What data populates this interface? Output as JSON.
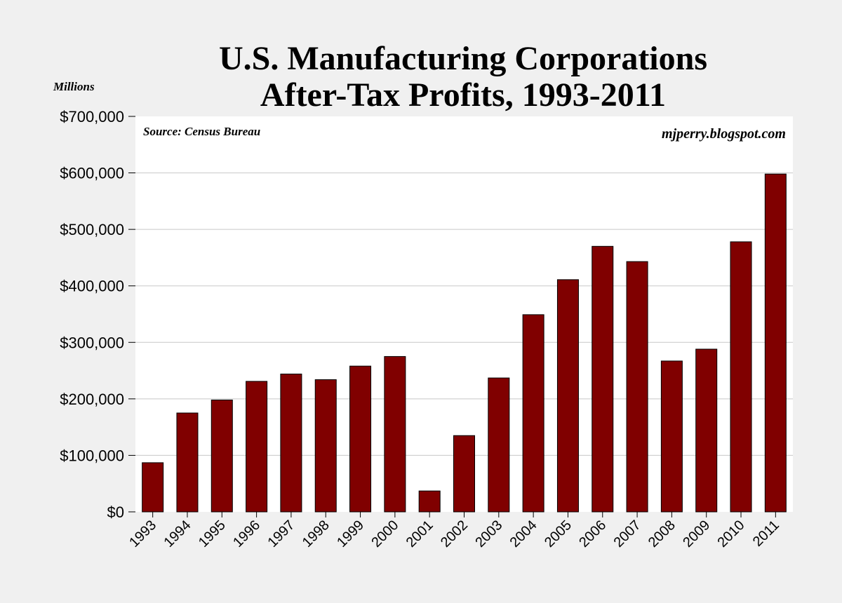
{
  "chart_data": {
    "type": "bar",
    "title": [
      "U.S. Manufacturing Corporations",
      "After-Tax Profits, 1993-2011"
    ],
    "ylabel": "Millions",
    "source": "Source: Census Bureau",
    "credit": "mjperry.blogspot.com",
    "categories": [
      "1993",
      "1994",
      "1995",
      "1996",
      "1997",
      "1998",
      "1999",
      "2000",
      "2001",
      "2002",
      "2003",
      "2004",
      "2005",
      "2006",
      "2007",
      "2008",
      "2009",
      "2010",
      "2011"
    ],
    "values": [
      87000,
      175000,
      198000,
      231000,
      244000,
      234000,
      258000,
      275000,
      37000,
      135000,
      237000,
      349000,
      411000,
      470000,
      443000,
      267000,
      288000,
      478000,
      598000
    ],
    "ylim": [
      0,
      700000
    ],
    "yticks": [
      "$0",
      "$100,000",
      "$200,000",
      "$300,000",
      "$400,000",
      "$500,000",
      "$600,000",
      "$700,000"
    ],
    "grid": true,
    "bar_color": "#800000",
    "background_color": "#f0f0f0",
    "plot_background": "#ffffff"
  }
}
